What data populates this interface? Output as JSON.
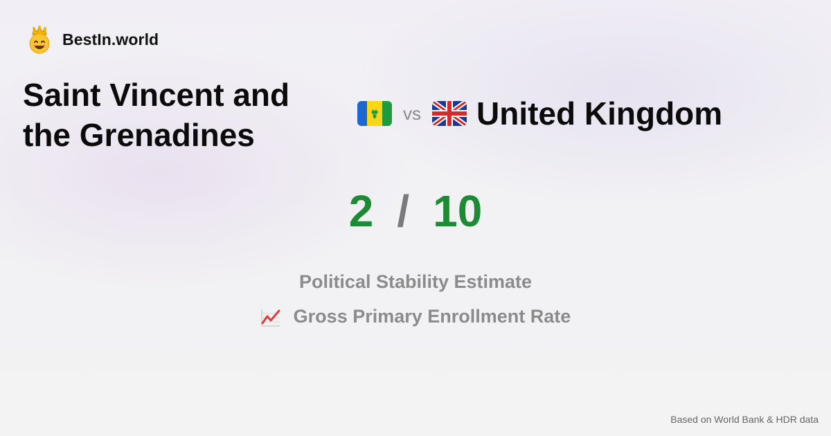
{
  "brand": {
    "name": "BestIn.world",
    "logo_icon": "crowned-smiley-icon"
  },
  "comparison": {
    "left_country": "Saint Vincent and the Grenadines",
    "vs_label": "vs",
    "right_country": "United Kingdom",
    "left_flag_icon": "saint-vincent-flag-icon",
    "right_flag_icon": "uk-flag-icon"
  },
  "score": {
    "left_value": "2",
    "separator": "/",
    "right_value": "10",
    "colors": {
      "value": "#1f8a35",
      "separator": "#7a7a7a"
    }
  },
  "metrics": [
    {
      "label": "Political Stability Estimate"
    },
    {
      "label": "Gross Primary Enrollment Rate",
      "icon": "chart-increasing-icon"
    }
  ],
  "footer": {
    "source_text": "Based on World Bank & HDR data"
  }
}
